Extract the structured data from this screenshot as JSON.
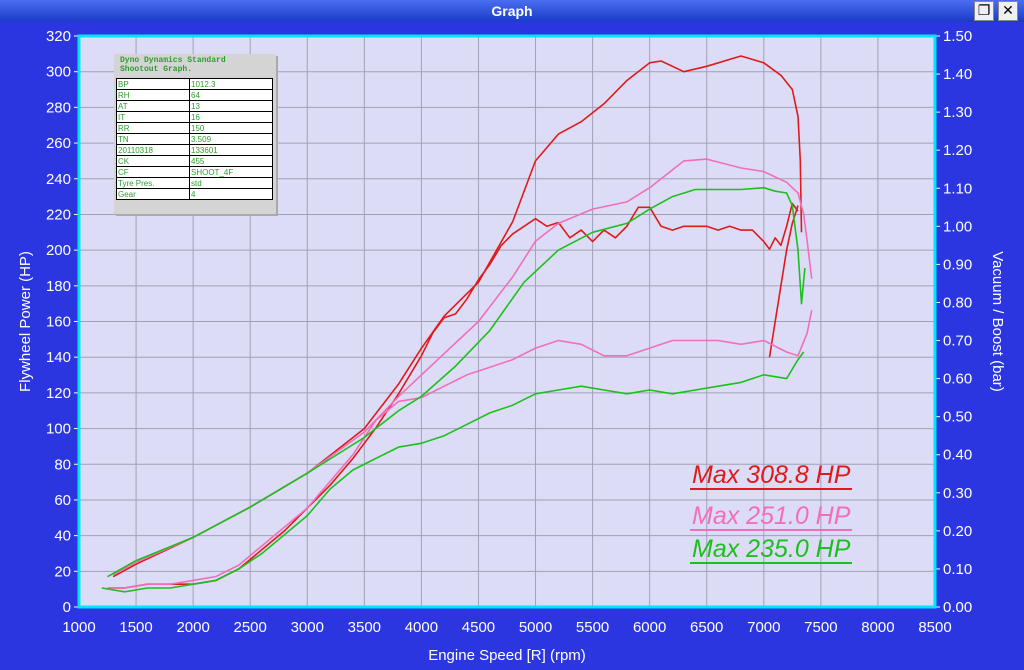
{
  "window": {
    "title": "Graph",
    "restore_glyph": "❐",
    "close_glyph": "✕"
  },
  "info_table": {
    "heading": "Dyno Dynamics Standard\nShootout Graph.",
    "rows": [
      {
        "key": "BP",
        "value": "1012.3"
      },
      {
        "key": "RH",
        "value": "64"
      },
      {
        "key": "AT",
        "value": "13"
      },
      {
        "key": "IT",
        "value": "16"
      },
      {
        "key": "RR",
        "value": "150"
      },
      {
        "key": "TN",
        "value": "3.509"
      },
      {
        "key": "20110318",
        "value": "133601"
      },
      {
        "key": "CK",
        "value": "455"
      },
      {
        "key": "CF",
        "value": "SHOOT_4F"
      },
      {
        "key": "Tyre Pres.",
        "value": "std"
      },
      {
        "key": "Gear",
        "value": "4"
      }
    ]
  },
  "max_labels": [
    {
      "text": "Max 308.8 HP",
      "color": "#e01a1a"
    },
    {
      "text": "Max 251.0 HP",
      "color": "#f070b8"
    },
    {
      "text": "Max 235.0 HP",
      "color": "#1cc01c"
    }
  ],
  "chart_data": {
    "type": "line",
    "xlabel": "Engine Speed [R] (rpm)",
    "ylabel": "Flywheel Power (HP)",
    "y2label": "Vacuum / Boost (bar)",
    "xlim": [
      1000,
      8500
    ],
    "ylim": [
      0,
      320
    ],
    "y2lim": [
      0,
      1.5
    ],
    "x_ticks": [
      1000,
      1500,
      2000,
      2500,
      3000,
      3500,
      4000,
      4500,
      5000,
      5500,
      6000,
      6500,
      7000,
      7500,
      8000,
      8500
    ],
    "y_ticks": [
      0,
      20,
      40,
      60,
      80,
      100,
      120,
      140,
      160,
      180,
      200,
      220,
      240,
      260,
      280,
      300,
      320
    ],
    "y2_ticks": [
      "0.00",
      "0.10",
      "0.20",
      "0.30",
      "0.40",
      "0.50",
      "0.60",
      "0.70",
      "0.80",
      "0.90",
      "1.00",
      "1.10",
      "1.20",
      "1.30",
      "1.40",
      "1.50"
    ],
    "grid": true,
    "colors": {
      "plot_bg": "#dcdcf6",
      "grid": "#a0a0b8",
      "frame": "#00e5ff",
      "window_bg": "#2b36e0"
    },
    "series": [
      {
        "color": "#e01a1a",
        "axis": "power",
        "x": [
          1300,
          1500,
          2000,
          2500,
          3000,
          3500,
          3800,
          4000,
          4200,
          4500,
          4800,
          5000,
          5200,
          5400,
          5600,
          5800,
          6000,
          6100,
          6300,
          6500,
          6800,
          7000,
          7150,
          7250,
          7300,
          7320,
          7330
        ],
        "y": [
          17,
          24,
          39,
          56,
          75,
          100,
          125,
          145,
          163,
          182,
          216,
          250,
          265,
          272,
          282,
          295,
          305,
          306,
          300,
          303,
          308.8,
          305,
          298,
          290,
          275,
          250,
          210
        ]
      },
      {
        "color": "#e01a1a",
        "axis": "boost",
        "x": [
          1250,
          1400,
          1600,
          1800,
          2000,
          2200,
          2400,
          2600,
          2800,
          3000,
          3200,
          3400,
          3600,
          3800,
          3900,
          4000,
          4100,
          4200,
          4300,
          4400,
          4500,
          4600,
          4700,
          4800,
          4900,
          5000,
          5100,
          5200,
          5300,
          5400,
          5500,
          5600,
          5700,
          5800,
          5900,
          6000,
          6100,
          6200,
          6300,
          6400,
          6500,
          6600,
          6700,
          6800,
          6900,
          7000,
          7050,
          7100,
          7150,
          7200,
          7250,
          7300
        ],
        "y": [
          0.05,
          0.05,
          0.06,
          0.06,
          0.06,
          0.07,
          0.1,
          0.15,
          0.2,
          0.26,
          0.32,
          0.39,
          0.47,
          0.56,
          0.61,
          0.66,
          0.72,
          0.76,
          0.77,
          0.81,
          0.86,
          0.9,
          0.95,
          0.98,
          1.0,
          1.02,
          1.0,
          1.01,
          0.97,
          0.99,
          0.96,
          0.99,
          0.97,
          1.0,
          1.05,
          1.05,
          1.0,
          0.99,
          1.0,
          1.0,
          1.0,
          0.99,
          1.0,
          0.99,
          0.99,
          0.96,
          0.94,
          0.97,
          0.95,
          1.0,
          1.06,
          1.04
        ]
      },
      {
        "color": "#e01a1a",
        "axis": "power",
        "x": [
          7050,
          7100,
          7150,
          7200,
          7250,
          7300
        ],
        "y": [
          140,
          160,
          180,
          200,
          215,
          225
        ]
      },
      {
        "color": "#f070b8",
        "axis": "power",
        "x": [
          1300,
          1500,
          2000,
          2500,
          3000,
          3500,
          3800,
          4000,
          4200,
          4500,
          4800,
          5000,
          5200,
          5500,
          5800,
          6000,
          6300,
          6500,
          6800,
          7000,
          7200,
          7300,
          7350,
          7380,
          7420
        ],
        "y": [
          18,
          25,
          39,
          56,
          75,
          98,
          118,
          130,
          142,
          160,
          185,
          205,
          215,
          223,
          227,
          235,
          250,
          251,
          246,
          244,
          238,
          232,
          220,
          205,
          184
        ]
      },
      {
        "color": "#f070b8",
        "axis": "boost",
        "x": [
          1250,
          1400,
          1600,
          1800,
          2000,
          2200,
          2400,
          2600,
          2800,
          3000,
          3200,
          3400,
          3600,
          3800,
          4000,
          4200,
          4400,
          4600,
          4800,
          5000,
          5200,
          5400,
          5600,
          5800,
          6000,
          6200,
          6400,
          6600,
          6800,
          7000,
          7200,
          7300,
          7380,
          7420
        ],
        "y": [
          0.05,
          0.05,
          0.06,
          0.06,
          0.07,
          0.08,
          0.11,
          0.16,
          0.21,
          0.26,
          0.33,
          0.4,
          0.49,
          0.54,
          0.55,
          0.58,
          0.61,
          0.63,
          0.65,
          0.68,
          0.7,
          0.69,
          0.66,
          0.66,
          0.68,
          0.7,
          0.7,
          0.7,
          0.69,
          0.7,
          0.67,
          0.66,
          0.72,
          0.78
        ]
      },
      {
        "color": "#1cc01c",
        "axis": "power",
        "x": [
          1250,
          1500,
          2000,
          2500,
          3000,
          3500,
          3800,
          4000,
          4300,
          4600,
          4900,
          5200,
          5500,
          5800,
          6000,
          6200,
          6400,
          6600,
          6800,
          7000,
          7100,
          7200,
          7250,
          7300,
          7330,
          7360
        ],
        "y": [
          17,
          26,
          39,
          56,
          75,
          95,
          110,
          118,
          135,
          155,
          182,
          200,
          210,
          215,
          223,
          230,
          234,
          234,
          234,
          235,
          233,
          232,
          225,
          200,
          170,
          190
        ]
      },
      {
        "color": "#1cc01c",
        "axis": "boost",
        "x": [
          1200,
          1400,
          1600,
          1800,
          2000,
          2200,
          2400,
          2600,
          2800,
          3000,
          3200,
          3400,
          3600,
          3800,
          4000,
          4200,
          4400,
          4600,
          4800,
          5000,
          5200,
          5400,
          5600,
          5800,
          6000,
          6200,
          6400,
          6600,
          6800,
          7000,
          7200,
          7300,
          7350
        ],
        "y": [
          0.05,
          0.04,
          0.05,
          0.05,
          0.06,
          0.07,
          0.1,
          0.14,
          0.19,
          0.24,
          0.31,
          0.36,
          0.39,
          0.42,
          0.43,
          0.45,
          0.48,
          0.51,
          0.53,
          0.56,
          0.57,
          0.58,
          0.57,
          0.56,
          0.57,
          0.56,
          0.57,
          0.58,
          0.59,
          0.61,
          0.6,
          0.65,
          0.67
        ]
      }
    ]
  }
}
